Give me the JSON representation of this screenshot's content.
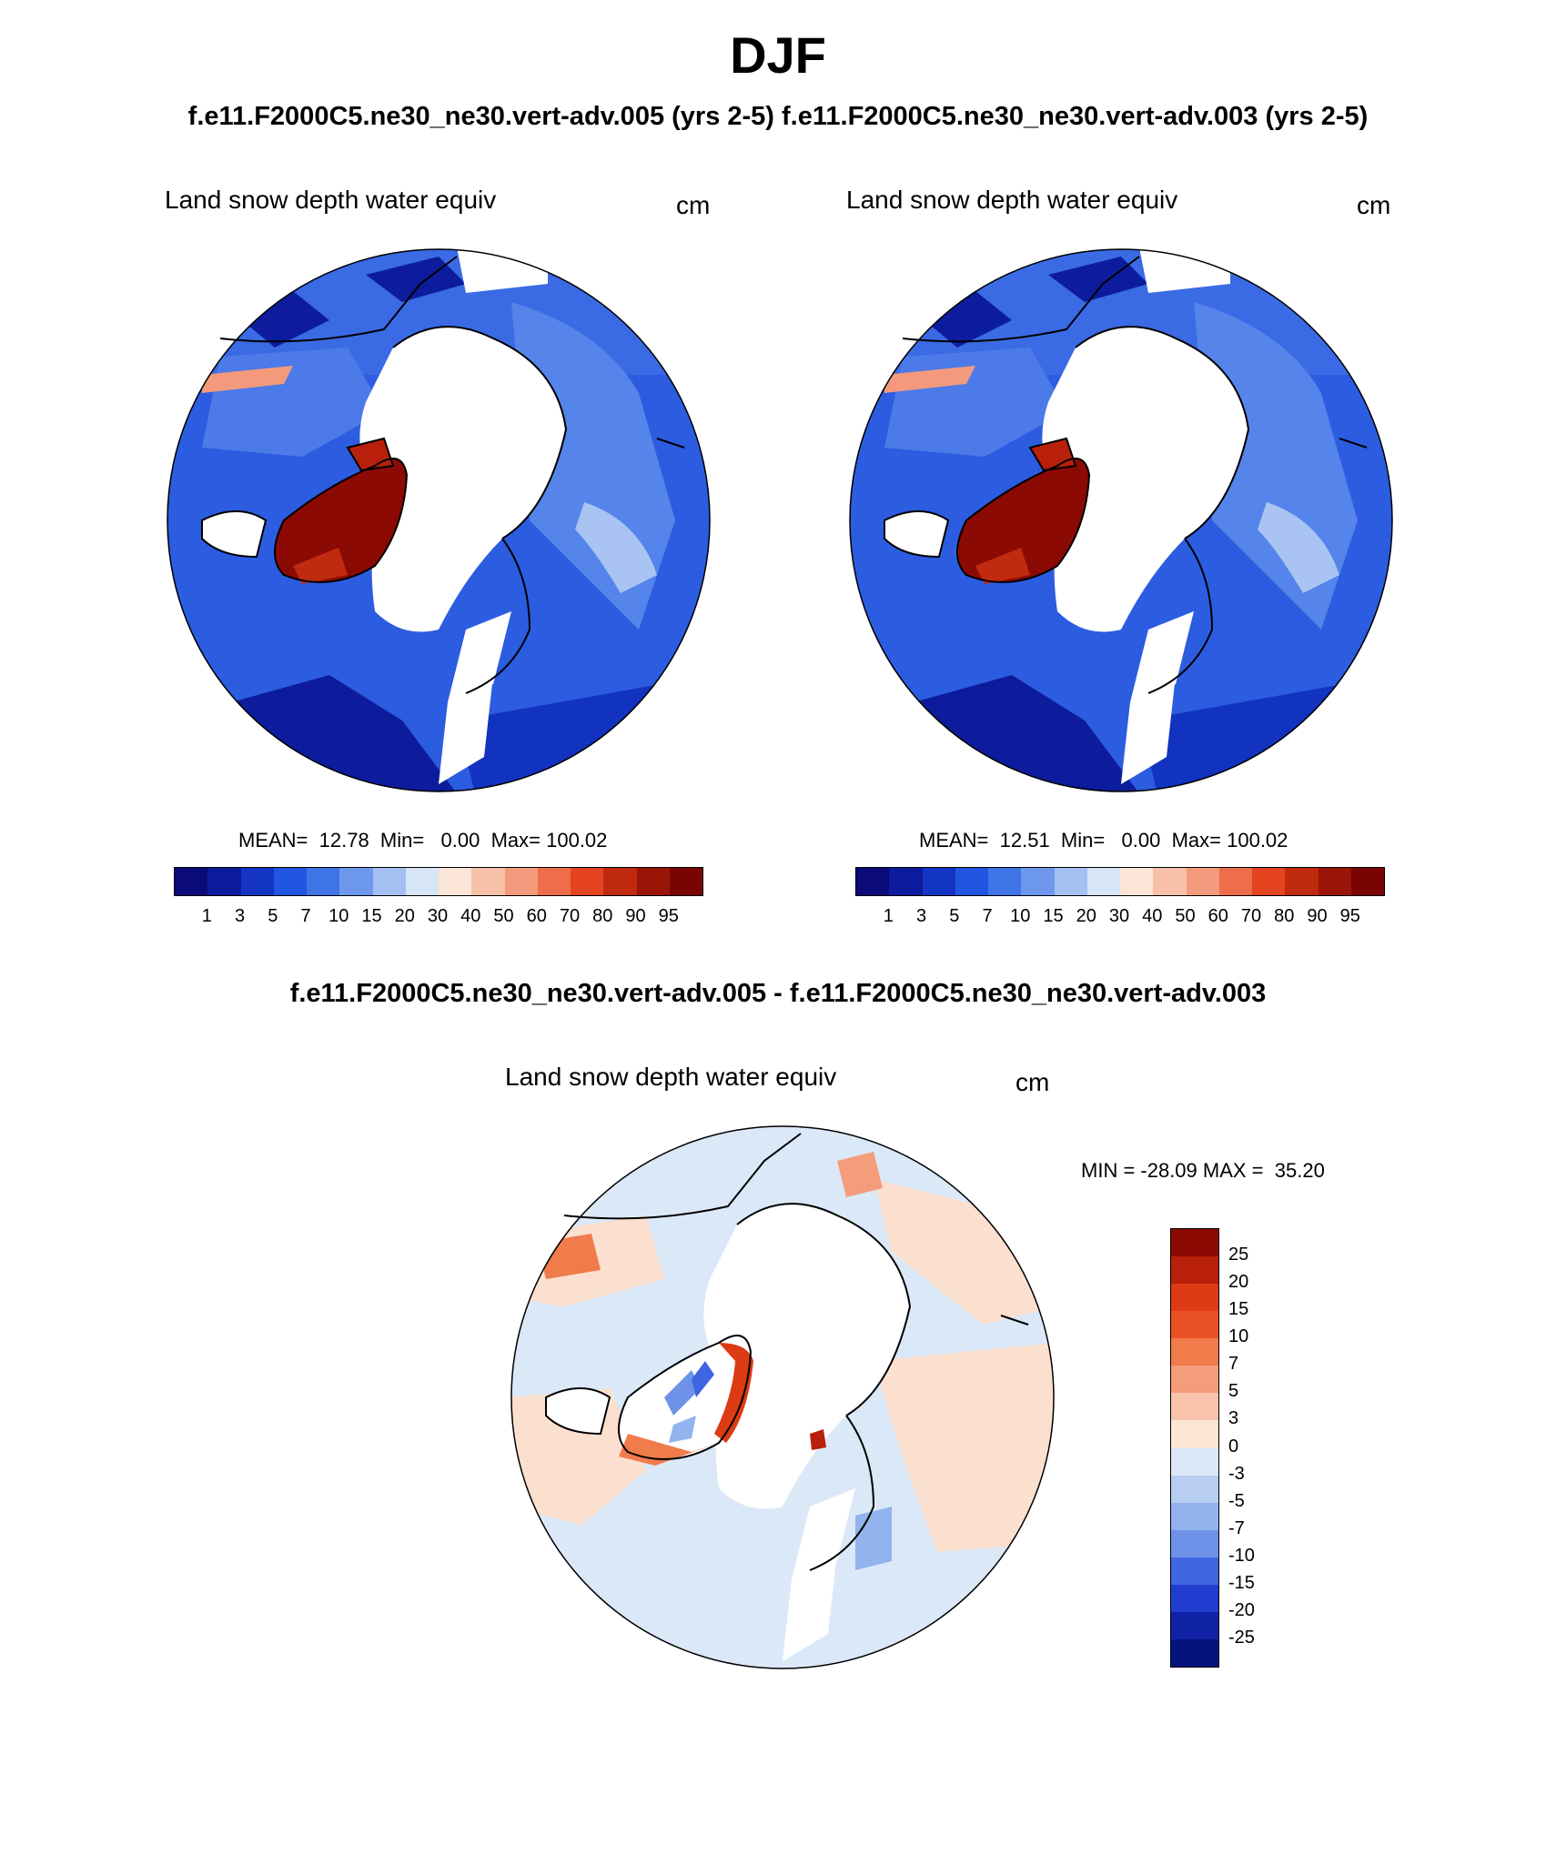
{
  "header": {
    "title": "DJF",
    "subtitle": "f.e11.F2000C5.ne30_ne30.vert-adv.005 (yrs 2-5) f.e11.F2000C5.ne30_ne30.vert-adv.003 (yrs 2-5)"
  },
  "panels": [
    {
      "variable": "Land snow depth water equiv",
      "units": "cm",
      "stats": "MEAN=  12.78  Min=   0.00  Max= 100.02"
    },
    {
      "variable": "Land snow depth water equiv",
      "units": "cm",
      "stats": "MEAN=  12.51  Min=   0.00  Max= 100.02"
    }
  ],
  "diff": {
    "title": "f.e11.F2000C5.ne30_ne30.vert-adv.005 - f.e11.F2000C5.ne30_ne30.vert-adv.003",
    "variable": "Land snow depth water equiv",
    "units": "cm",
    "minmax": "MIN = -28.09 MAX =  35.20"
  },
  "colorbar": {
    "labels": [
      "1",
      "3",
      "5",
      "7",
      "10",
      "15",
      "20",
      "30",
      "40",
      "50",
      "60",
      "70",
      "80",
      "90",
      "95"
    ],
    "colors": [
      "#0a0a78",
      "#0c1c9c",
      "#1434c4",
      "#2156e0",
      "#3f74e6",
      "#6e98ee",
      "#a4c0f2",
      "#d6e6f7",
      "#fbe5d6",
      "#f6c1a8",
      "#f39a7c",
      "#ee6e4c",
      "#e4441f",
      "#c02a0e",
      "#9b1408",
      "#7a0404"
    ]
  },
  "diff_colorbar": {
    "labels": [
      "25",
      "20",
      "15",
      "10",
      "7",
      "5",
      "3",
      "0",
      "-3",
      "-5",
      "-7",
      "-10",
      "-15",
      "-20",
      "-25"
    ],
    "colors": [
      "#8b0a04",
      "#b8200b",
      "#dc3b14",
      "#ea5226",
      "#f07b4b",
      "#f59c7a",
      "#f9c4ab",
      "#fde6d6",
      "#dbe8f8",
      "#b7cef2",
      "#93b3ee",
      "#6d92e8",
      "#3f66e0",
      "#1f3ed0",
      "#0f22a6",
      "#07137c"
    ]
  },
  "map_colors": {
    "deep": "#1232c0",
    "mid": "#2c5ce0",
    "light": "#6e98ee",
    "pale": "#a9c4f2",
    "red": "#8b0a04",
    "diff_pale_blue": "#dbe8f8",
    "diff_pale_red": "#fbe0cf",
    "diff_red": "#e4441f"
  }
}
